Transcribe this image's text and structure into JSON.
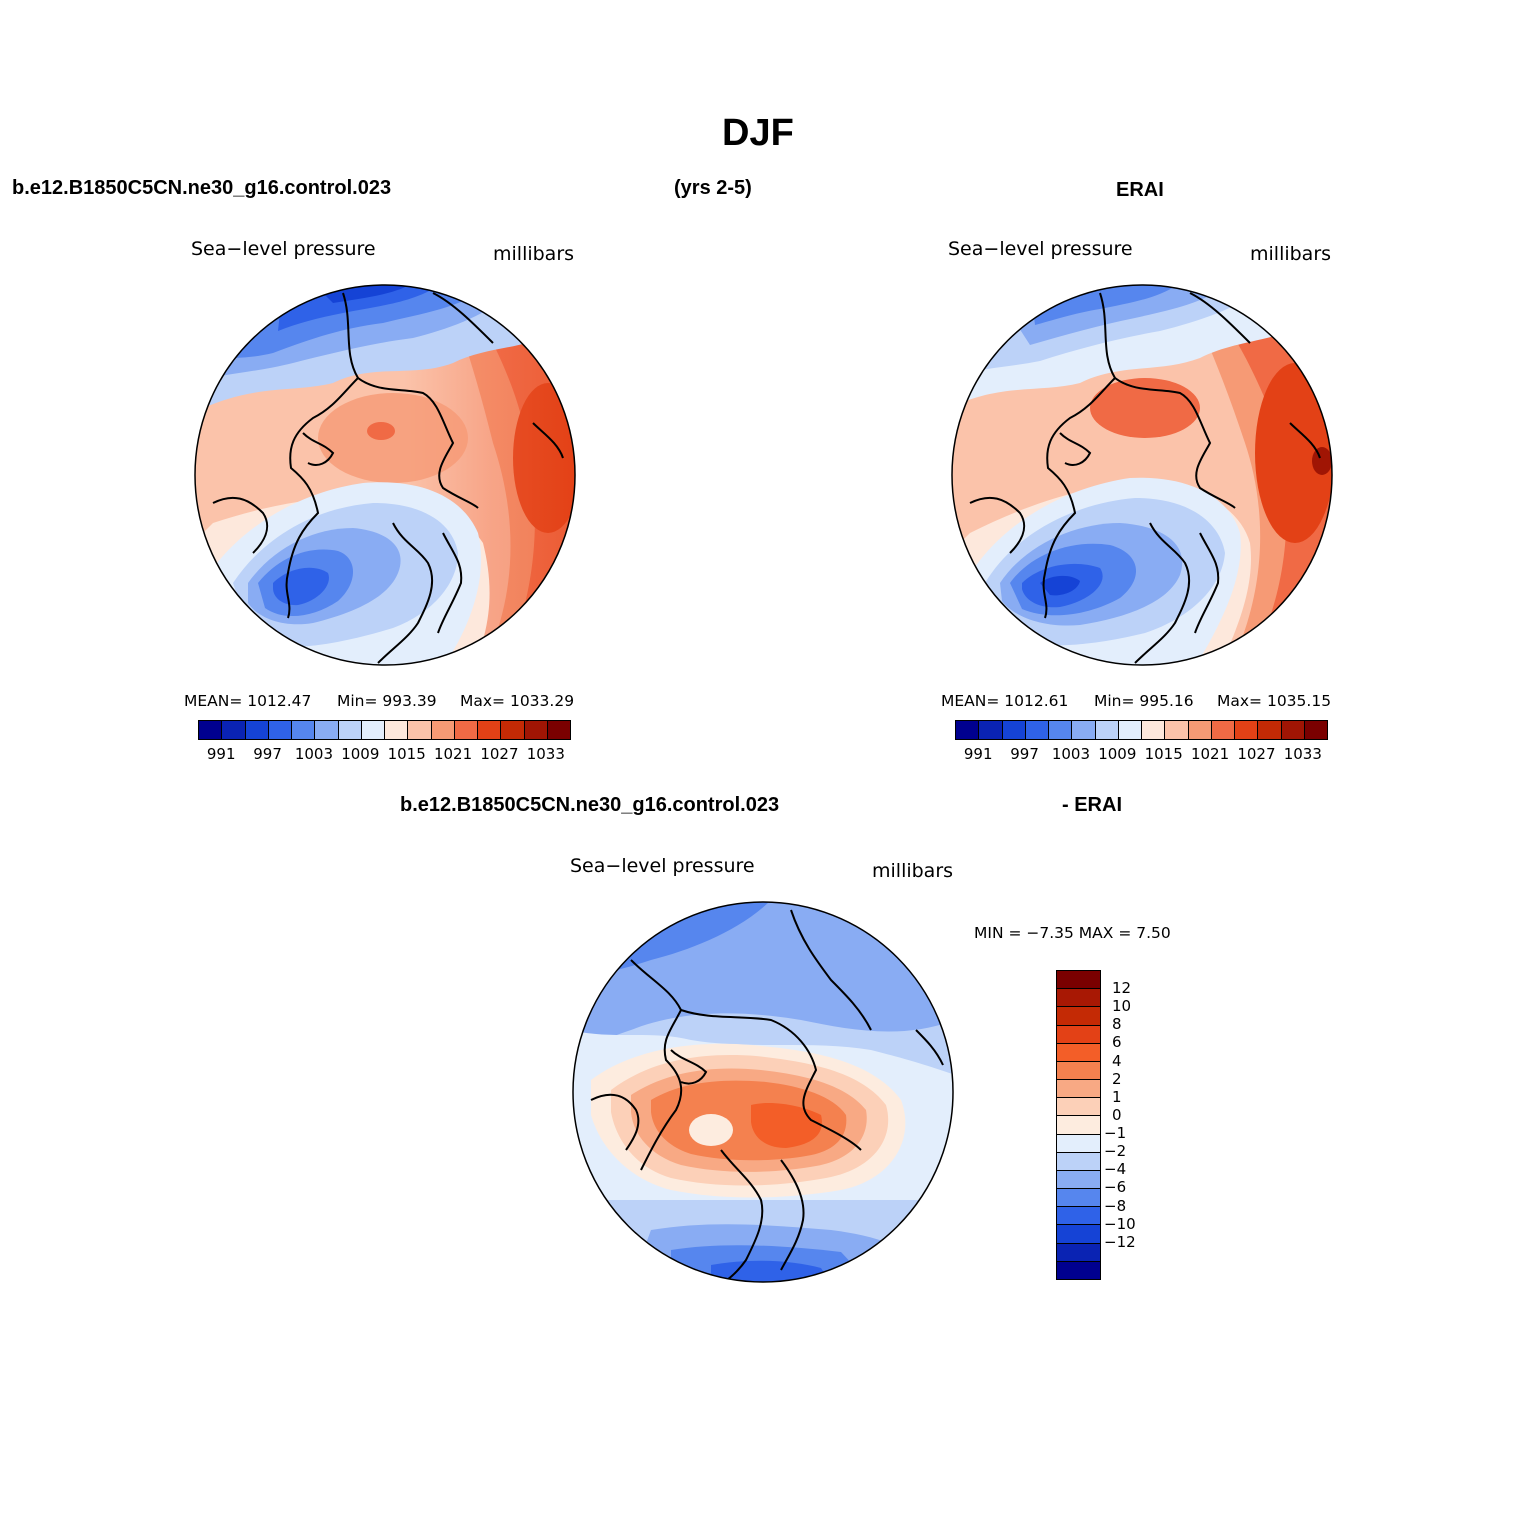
{
  "figure": {
    "title": "DJF",
    "case_name": "b.e12.B1850C5CN.ne30_g16.control.023",
    "years": "(yrs 2-5)",
    "obs_name": "ERAI",
    "diff_left": "b.e12.B1850C5CN.ne30_g16.control.023",
    "diff_right": "- ERAI"
  },
  "panels": [
    {
      "id": "model",
      "variable": "Sea−level pressure",
      "units": "millibars",
      "mean_text": "MEAN=  1012.47",
      "min_text": "Min=  993.39",
      "max_text": "Max=  1033.29",
      "mean": 1012.47,
      "min": 993.39,
      "max": 1033.29
    },
    {
      "id": "obs",
      "variable": "Sea−level pressure",
      "units": "millibars",
      "mean_text": "MEAN=  1012.61",
      "min_text": "Min=  995.16",
      "max_text": "Max=  1035.15",
      "mean": 1012.61,
      "min": 995.16,
      "max": 1035.15
    },
    {
      "id": "diff",
      "variable": "Sea−level pressure",
      "units": "millibars",
      "minmax_text": "MIN =   −7.35  MAX =     7.50",
      "min": -7.35,
      "max": 7.5
    }
  ],
  "colorbar_abs": {
    "colors": [
      "#00008f",
      "#0a23b3",
      "#1543d6",
      "#2f62e8",
      "#5686ee",
      "#89acf3",
      "#bcd2f8",
      "#e3eefc",
      "#fde8dc",
      "#fbc3aa",
      "#f69a75",
      "#f06a45",
      "#e34116",
      "#c42a05",
      "#a01504",
      "#7a0000"
    ],
    "labels": [
      "991",
      "997",
      "1003",
      "1009",
      "1015",
      "1021",
      "1027",
      "1033"
    ]
  },
  "colorbar_diff": {
    "colors": [
      "#7a0000",
      "#a81804",
      "#c42a05",
      "#e34116",
      "#f35e28",
      "#f4814f",
      "#f8a984",
      "#fcd0b8",
      "#fdecdf",
      "#e3eefc",
      "#bcd2f8",
      "#89acf3",
      "#5686ee",
      "#2f62e8",
      "#1543d6",
      "#0a23b3",
      "#00008f"
    ],
    "labels": [
      "12",
      "10",
      "8",
      "6",
      "4",
      "2",
      "1",
      "0",
      "−1",
      "−2",
      "−4",
      "−6",
      "−8",
      "−10",
      "−12"
    ]
  },
  "chart_data": [
    {
      "type": "heatmap",
      "title": "Sea−level pressure (b.e12.B1850C5CN.ne30_g16.control.023, DJF yrs 2-5)",
      "projection": "north polar stereographic",
      "units": "millibars",
      "contour_levels": [
        991,
        994,
        997,
        1000,
        1003,
        1006,
        1009,
        1012,
        1015,
        1018,
        1021,
        1024,
        1027,
        1030,
        1033
      ],
      "stats": {
        "mean": 1012.47,
        "min": 993.39,
        "max": 1033.29
      }
    },
    {
      "type": "heatmap",
      "title": "Sea−level pressure (ERAI, DJF)",
      "projection": "north polar stereographic",
      "units": "millibars",
      "contour_levels": [
        991,
        994,
        997,
        1000,
        1003,
        1006,
        1009,
        1012,
        1015,
        1018,
        1021,
        1024,
        1027,
        1030,
        1033
      ],
      "stats": {
        "mean": 1012.61,
        "min": 995.16,
        "max": 1035.15
      }
    },
    {
      "type": "heatmap",
      "title": "Sea−level pressure difference (model − ERAI, DJF)",
      "projection": "north polar stereographic",
      "units": "millibars",
      "contour_levels": [
        -12,
        -10,
        -8,
        -6,
        -4,
        -2,
        -1,
        0,
        1,
        2,
        4,
        6,
        8,
        10,
        12
      ],
      "stats": {
        "min": -7.35,
        "max": 7.5
      }
    }
  ]
}
